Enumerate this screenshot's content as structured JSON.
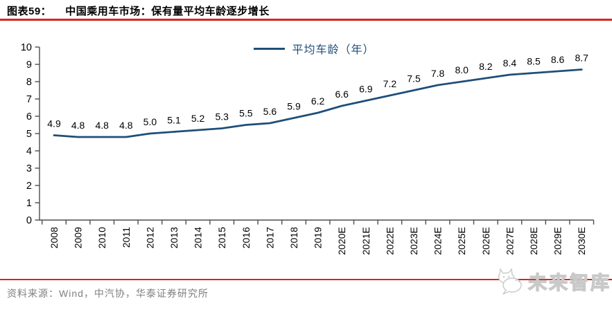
{
  "header": {
    "figure_label": "图表59：",
    "title": "中国乘用车市场：保有量平均车龄逐步增长"
  },
  "chart_data": {
    "type": "line",
    "legend": "平均车龄（年）",
    "categories": [
      "2008",
      "2009",
      "2010",
      "2011",
      "2012",
      "2013",
      "2014",
      "2015",
      "2016",
      "2017",
      "2018",
      "2019",
      "2020E",
      "2021E",
      "2022E",
      "2023E",
      "2024E",
      "2025E",
      "2026E",
      "2027E",
      "2028E",
      "2029E",
      "2030E"
    ],
    "values": [
      4.9,
      4.8,
      4.8,
      4.8,
      5.0,
      5.1,
      5.2,
      5.3,
      5.5,
      5.6,
      5.9,
      6.2,
      6.6,
      6.9,
      7.2,
      7.5,
      7.8,
      8.0,
      8.2,
      8.4,
      8.5,
      8.6,
      8.7
    ],
    "ylim": [
      0,
      10
    ],
    "ytick_step": 1,
    "grid": false,
    "data_labels": true,
    "legend_position": "top-center",
    "title": "",
    "xlabel": "",
    "ylabel": ""
  },
  "footer": {
    "source": "资料来源：Wind，中汽协，华泰证券研究所",
    "watermark": "未来智库"
  },
  "colors": {
    "accent_red": "#D2271B",
    "line_blue": "#1F4E79",
    "axis_gray": "#4d4d4d",
    "label_black": "#000000",
    "source_gray": "#808080",
    "watermark_gray": "#c9c9c9"
  }
}
